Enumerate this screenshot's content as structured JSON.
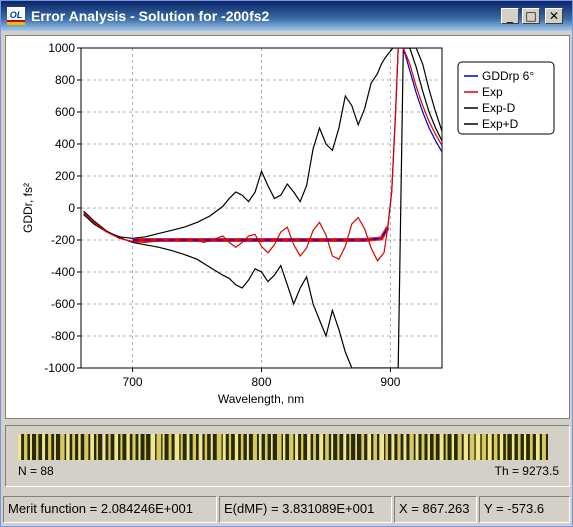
{
  "window": {
    "title": "Error Analysis - Solution for -200fs2",
    "minimize_glyph": "_",
    "maximize_glyph": "□",
    "close_glyph": "✕",
    "icon": "ol-app-icon",
    "icon_text": "OL"
  },
  "chart_data": {
    "type": "line",
    "xlabel": "Wavelength, nm",
    "ylabel": "GDDr, fs²",
    "xlim": [
      660,
      940
    ],
    "ylim": [
      -1000,
      1000
    ],
    "x_ticks": [
      700,
      800,
      900
    ],
    "y_ticks": [
      1000,
      800,
      600,
      400,
      200,
      0,
      -200,
      -400,
      -600,
      -800,
      -1000
    ],
    "grid": true,
    "legend_position": "top-right",
    "series": [
      {
        "name": "GDDrp 6°",
        "color": "#0000cc",
        "x": [
          700,
          720,
          740,
          760,
          780,
          800,
          820,
          840,
          860,
          880,
          893,
          898,
          901,
          904,
          906,
          910,
          915,
          920,
          925,
          930,
          935,
          940
        ],
        "y": [
          -200,
          -200,
          -200,
          -200,
          -200,
          -200,
          -200,
          -200,
          -200,
          -200,
          -190,
          -120,
          100,
          600,
          1000,
          1000,
          860,
          720,
          600,
          500,
          420,
          350
        ]
      },
      {
        "name": "Exp",
        "color": "#dd0000",
        "x": [
          662,
          670,
          680,
          690,
          700,
          710,
          720,
          730,
          740,
          750,
          755,
          760,
          765,
          770,
          775,
          780,
          785,
          790,
          795,
          800,
          805,
          810,
          815,
          820,
          825,
          830,
          835,
          840,
          845,
          850,
          855,
          860,
          865,
          870,
          875,
          880,
          885,
          890,
          895,
          898,
          901,
          904,
          906,
          910,
          915,
          920,
          925,
          930,
          935,
          940
        ],
        "y": [
          -30,
          -90,
          -150,
          -190,
          -210,
          -215,
          -205,
          -200,
          -195,
          -200,
          -215,
          -205,
          -190,
          -175,
          -215,
          -245,
          -215,
          -175,
          -165,
          -240,
          -280,
          -230,
          -150,
          -120,
          -230,
          -300,
          -250,
          -140,
          -90,
          -170,
          -300,
          -320,
          -240,
          -100,
          -60,
          -130,
          -250,
          -330,
          -280,
          -120,
          100,
          600,
          1000,
          1000,
          900,
          760,
          640,
          540,
          460,
          390
        ]
      },
      {
        "name": "Exp-D",
        "color": "#000000",
        "x": [
          662,
          670,
          680,
          690,
          700,
          710,
          720,
          730,
          740,
          750,
          760,
          770,
          775,
          780,
          785,
          790,
          795,
          800,
          805,
          810,
          815,
          820,
          825,
          830,
          835,
          840,
          845,
          850,
          855,
          860,
          865,
          870,
          875,
          880,
          885,
          890,
          893,
          897,
          900,
          902,
          904,
          906,
          910,
          915,
          920,
          925,
          930,
          935,
          940
        ],
        "y": [
          -20,
          -80,
          -145,
          -185,
          -215,
          -230,
          -245,
          -265,
          -290,
          -320,
          -370,
          -420,
          -440,
          -480,
          -500,
          -450,
          -380,
          -400,
          -460,
          -420,
          -360,
          -480,
          -600,
          -500,
          -430,
          -600,
          -700,
          -800,
          -640,
          -760,
          -900,
          -1000,
          -1000,
          -1000,
          -1000,
          -1000,
          -1000,
          -1000,
          -1000,
          -1000,
          -1000,
          -1000,
          1000,
          1000,
          880,
          730,
          600,
          500,
          420
        ]
      },
      {
        "name": "Exp+D",
        "color": "#000000",
        "x": [
          662,
          670,
          680,
          690,
          700,
          710,
          720,
          730,
          740,
          750,
          760,
          770,
          775,
          780,
          785,
          790,
          795,
          800,
          805,
          810,
          815,
          820,
          825,
          830,
          835,
          840,
          845,
          850,
          855,
          860,
          865,
          870,
          875,
          880,
          885,
          890,
          893,
          896,
          899,
          902,
          904,
          906,
          910,
          915,
          920,
          925,
          930,
          935,
          940
        ],
        "y": [
          -40,
          -100,
          -150,
          -180,
          -190,
          -180,
          -160,
          -140,
          -120,
          -90,
          -50,
          10,
          60,
          100,
          80,
          40,
          100,
          230,
          140,
          60,
          80,
          150,
          100,
          40,
          140,
          370,
          500,
          400,
          360,
          500,
          700,
          640,
          520,
          620,
          780,
          840,
          900,
          940,
          970,
          1000,
          1000,
          1000,
          1000,
          1000,
          1000,
          900,
          740,
          600,
          480
        ]
      }
    ]
  },
  "barcode": {
    "n_label": "N = 88",
    "th_label": "Th = 9273.5",
    "stripe_count": 88
  },
  "status": {
    "merit": "Merit function =  2.084246E+001",
    "edmf": "E(dMF) =  3.831089E+001",
    "x_readout": "X = 867.263",
    "y_readout": "Y = -573.6"
  }
}
